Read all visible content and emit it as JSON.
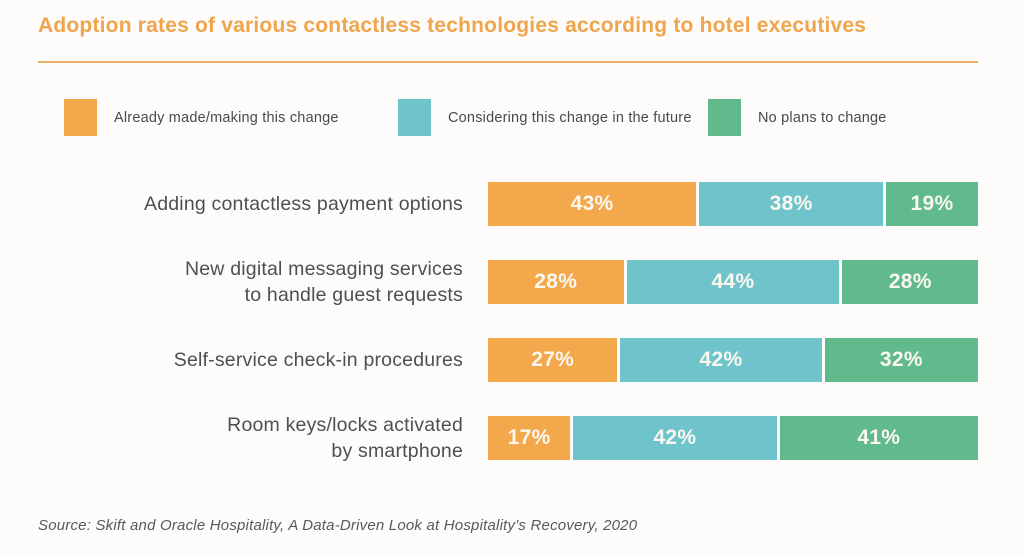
{
  "title": "Adoption rates of various contactless technologies according to hotel executives",
  "source": "Source: Skift and Oracle Hospitality, A Data-Driven Look at Hospitality’s Recovery, 2020",
  "colors": {
    "title_orange": "#F0A44C",
    "divider_orange": "#EBB36A",
    "already_orange": "#F2A84B",
    "considering_teal": "#6EC4CA",
    "noplans_green": "#60BA8B",
    "label_gray": "#4F4F4F",
    "value_text": "#FBF8F2",
    "background": "#FDFCFA"
  },
  "legend": [
    {
      "label": "Already made/making this change",
      "color": "#F2A84B"
    },
    {
      "label": "Considering this change in the future",
      "color": "#6EC4CA"
    },
    {
      "label": "No plans to change",
      "color": "#60BA8B"
    }
  ],
  "chart_data": {
    "type": "bar",
    "orientation": "horizontal",
    "stacked": true,
    "title": "Adoption rates of various contactless technologies according to hotel executives",
    "categories": [
      "Adding contactless payment options",
      "New digital messaging services\nto handle guest requests",
      "Self-service check-in procedures",
      "Room keys/locks activated\nby smartphone"
    ],
    "series": [
      {
        "name": "Already made/making this change",
        "key": "already",
        "color": "#F2A84B",
        "values": [
          43,
          28,
          27,
          17
        ]
      },
      {
        "name": "Considering this change in the future",
        "key": "considering",
        "color": "#6EC4CA",
        "values": [
          38,
          44,
          42,
          42
        ]
      },
      {
        "name": "No plans to change",
        "key": "no-plans",
        "color": "#60BA8B",
        "values": [
          19,
          28,
          32,
          41
        ]
      }
    ],
    "value_suffix": "%",
    "xlim": [
      0,
      100
    ],
    "grid": false,
    "legend_position": "top"
  }
}
